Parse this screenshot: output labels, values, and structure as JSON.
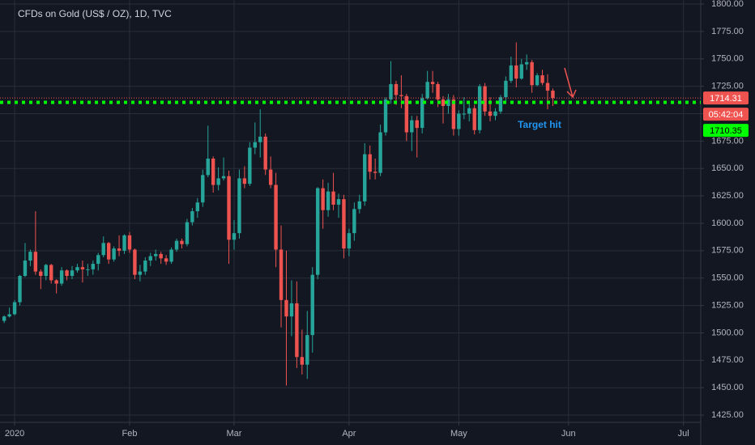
{
  "chart_data": {
    "type": "candlestick",
    "title": "CFDs on Gold (US$ / OZ), 1D, TVC",
    "x": [
      0,
      1,
      2,
      3,
      4,
      5,
      6,
      7,
      8,
      9,
      10,
      11,
      12,
      13,
      14,
      15,
      16,
      17,
      18,
      19,
      20,
      21,
      22,
      23,
      24,
      25,
      26,
      27,
      28,
      29,
      30,
      31,
      32,
      33,
      34,
      35,
      36,
      37,
      38,
      39,
      40,
      41,
      42,
      43,
      44,
      45,
      46,
      47,
      48,
      49,
      50,
      51,
      52,
      53,
      54,
      55,
      56,
      57,
      58,
      59,
      60,
      61,
      62,
      63,
      64,
      65,
      66,
      67,
      68,
      69,
      70,
      71,
      72,
      73,
      74,
      75,
      76,
      77,
      78,
      79,
      80,
      81,
      82,
      83,
      84,
      85,
      86,
      87,
      88,
      89,
      90,
      91,
      92,
      93,
      94,
      95,
      96,
      97,
      98,
      99,
      100,
      101,
      102,
      103,
      104,
      105
    ],
    "open": [
      1511,
      1515,
      1517,
      1528,
      1552,
      1566,
      1574,
      1556,
      1552,
      1562,
      1548,
      1545,
      1557,
      1552,
      1557,
      1560,
      1558,
      1558,
      1563,
      1571,
      1582,
      1567,
      1577,
      1575,
      1589,
      1576,
      1553,
      1556,
      1566,
      1570,
      1572,
      1568,
      1565,
      1576,
      1584,
      1581,
      1601,
      1611,
      1619,
      1644,
      1659,
      1635,
      1641,
      1643,
      1585,
      1591,
      1641,
      1636,
      1669,
      1674,
      1679,
      1649,
      1635,
      1576,
      1530,
      1515,
      1527,
      1478,
      1471,
      1498,
      1553,
      1632,
      1612,
      1629,
      1617,
      1622,
      1577,
      1591,
      1613,
      1620,
      1663,
      1647,
      1646,
      1683,
      1713,
      1727,
      1717,
      1716,
      1683,
      1694,
      1687,
      1714,
      1729,
      1727,
      1713,
      1707,
      1713,
      1686,
      1700,
      1700,
      1705,
      1685,
      1725,
      1702,
      1698,
      1702,
      1715,
      1730,
      1744,
      1732,
      1745,
      1747,
      1726,
      1735,
      1728,
      1721
    ],
    "high": [
      1516,
      1523,
      1530,
      1553,
      1582,
      1576,
      1611,
      1558,
      1563,
      1563,
      1549,
      1560,
      1558,
      1561,
      1563,
      1566,
      1563,
      1566,
      1573,
      1588,
      1583,
      1579,
      1589,
      1590,
      1592,
      1577,
      1562,
      1569,
      1573,
      1576,
      1574,
      1571,
      1578,
      1586,
      1586,
      1604,
      1614,
      1623,
      1649,
      1689,
      1661,
      1651,
      1660,
      1648,
      1603,
      1649,
      1652,
      1674,
      1692,
      1704,
      1682,
      1661,
      1646,
      1598,
      1575,
      1548,
      1547,
      1503,
      1520,
      1560,
      1633,
      1640,
      1637,
      1646,
      1627,
      1626,
      1595,
      1619,
      1626,
      1673,
      1671,
      1659,
      1690,
      1715,
      1748,
      1730,
      1735,
      1718,
      1698,
      1698,
      1718,
      1739,
      1739,
      1729,
      1716,
      1718,
      1717,
      1703,
      1715,
      1711,
      1708,
      1727,
      1728,
      1715,
      1705,
      1717,
      1734,
      1752,
      1765,
      1750,
      1754,
      1749,
      1737,
      1740,
      1736,
      1723
    ],
    "low": [
      1509,
      1514,
      1516,
      1525,
      1551,
      1561,
      1553,
      1540,
      1548,
      1545,
      1536,
      1543,
      1548,
      1549,
      1555,
      1546,
      1552,
      1553,
      1557,
      1569,
      1563,
      1565,
      1570,
      1572,
      1573,
      1549,
      1547,
      1553,
      1561,
      1566,
      1563,
      1562,
      1563,
      1574,
      1577,
      1579,
      1598,
      1605,
      1615,
      1642,
      1628,
      1630,
      1639,
      1563,
      1576,
      1586,
      1632,
      1634,
      1663,
      1660,
      1644,
      1632,
      1560,
      1505,
      1452,
      1497,
      1468,
      1462,
      1458,
      1482,
      1549,
      1595,
      1606,
      1612,
      1605,
      1568,
      1570,
      1584,
      1609,
      1616,
      1640,
      1640,
      1643,
      1680,
      1709,
      1708,
      1705,
      1675,
      1666,
      1660,
      1682,
      1713,
      1719,
      1706,
      1691,
      1700,
      1680,
      1680,
      1695,
      1693,
      1681,
      1682,
      1698,
      1693,
      1694,
      1700,
      1711,
      1728,
      1724,
      1731,
      1740,
      1719,
      1725,
      1726,
      1704,
      1707
    ],
    "close": [
      1515,
      1517,
      1528,
      1552,
      1566,
      1574,
      1556,
      1552,
      1562,
      1548,
      1545,
      1557,
      1552,
      1557,
      1560,
      1558,
      1558,
      1563,
      1571,
      1582,
      1567,
      1577,
      1575,
      1589,
      1576,
      1553,
      1556,
      1566,
      1570,
      1572,
      1568,
      1565,
      1576,
      1584,
      1581,
      1601,
      1611,
      1619,
      1644,
      1659,
      1635,
      1641,
      1643,
      1585,
      1591,
      1641,
      1636,
      1669,
      1674,
      1679,
      1649,
      1635,
      1576,
      1530,
      1515,
      1527,
      1478,
      1471,
      1498,
      1553,
      1632,
      1612,
      1629,
      1617,
      1622,
      1577,
      1591,
      1613,
      1620,
      1663,
      1647,
      1646,
      1683,
      1713,
      1727,
      1717,
      1716,
      1683,
      1694,
      1687,
      1714,
      1729,
      1727,
      1713,
      1707,
      1713,
      1686,
      1700,
      1700,
      1705,
      1685,
      1725,
      1702,
      1698,
      1702,
      1715,
      1730,
      1744,
      1732,
      1745,
      1747,
      1726,
      1735,
      1728,
      1721,
      1714.31
    ],
    "up_color": "#26a69a",
    "down_color": "#ef5350",
    "xlim": [
      -0.8,
      133.3
    ],
    "xticks": [
      {
        "value": 2,
        "label": "2020"
      },
      {
        "value": 24,
        "label": "Feb"
      },
      {
        "value": 44,
        "label": "Mar"
      },
      {
        "value": 66,
        "label": "Apr"
      },
      {
        "value": 87,
        "label": "May"
      },
      {
        "value": 108,
        "label": "Jun"
      },
      {
        "value": 130,
        "label": "Jul"
      }
    ],
    "ylim": [
      1418.4,
      1803.7
    ],
    "yticks": [
      {
        "value": 1425,
        "label": "1425.00"
      },
      {
        "value": 1450,
        "label": "1450.00"
      },
      {
        "value": 1475,
        "label": "1475.00"
      },
      {
        "value": 1500,
        "label": "1500.00"
      },
      {
        "value": 1525,
        "label": "1525.00"
      },
      {
        "value": 1550,
        "label": "1550.00"
      },
      {
        "value": 1575,
        "label": "1575.00"
      },
      {
        "value": 1600,
        "label": "1600.00"
      },
      {
        "value": 1625,
        "label": "1625.00"
      },
      {
        "value": 1650,
        "label": "1650.00"
      },
      {
        "value": 1675,
        "label": "1675.00"
      },
      {
        "value": 1700,
        "label": "1700.00"
      },
      {
        "value": 1725,
        "label": "1725.00"
      },
      {
        "value": 1750,
        "label": "1750.00"
      },
      {
        "value": 1775,
        "label": "1775.00"
      },
      {
        "value": 1800,
        "label": "1800.00"
      }
    ],
    "grid": true,
    "price_lines": [
      {
        "value": 1714.31,
        "label": "1714.31",
        "color": "#ef5350",
        "style": "dotted-thin"
      },
      {
        "value": 1710.35,
        "label": "1710.35",
        "color": "#00ff00",
        "style": "dotted-thick"
      }
    ],
    "countdown": "05:42:04",
    "annotation": "Target hit"
  }
}
